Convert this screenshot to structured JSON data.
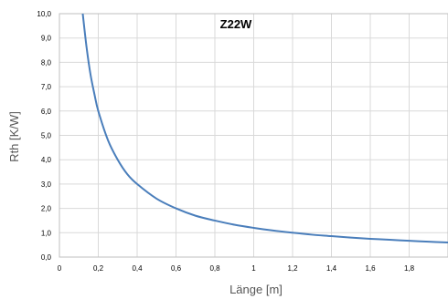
{
  "chart_data": {
    "type": "line",
    "title": "Z22W",
    "xlabel": "Länge [m]",
    "ylabel": "Rth [K/W]",
    "xlim": [
      0,
      2.0
    ],
    "ylim": [
      0,
      10
    ],
    "grid": true,
    "x_ticks": [
      0,
      0.2,
      0.4,
      0.6,
      0.8,
      1.0,
      1.2,
      1.4,
      1.6,
      1.8
    ],
    "x_tick_labels": [
      "0",
      "0,2",
      "0,4",
      "0,6",
      "0,8",
      "1",
      "1,2",
      "1,4",
      "1,6",
      "1,8"
    ],
    "y_ticks": [
      0,
      1,
      2,
      3,
      4,
      5,
      6,
      7,
      8,
      9,
      10
    ],
    "y_tick_labels": [
      "0,0",
      "1,0",
      "2,0",
      "3,0",
      "4,0",
      "5,0",
      "6,0",
      "7,0",
      "8,0",
      "9,0",
      "10,0"
    ],
    "series": [
      {
        "color": "#4a7ebb",
        "x": [
          0.12,
          0.14,
          0.16,
          0.18,
          0.2,
          0.25,
          0.3,
          0.35,
          0.4,
          0.5,
          0.6,
          0.7,
          0.8,
          0.9,
          1.0,
          1.1,
          1.2,
          1.3,
          1.4,
          1.5,
          1.6,
          1.7,
          1.8,
          1.9,
          2.0
        ],
        "y": [
          10.0,
          8.6,
          7.5,
          6.7,
          6.0,
          4.8,
          4.0,
          3.4,
          3.0,
          2.4,
          2.0,
          1.7,
          1.5,
          1.33,
          1.2,
          1.09,
          1.0,
          0.92,
          0.86,
          0.8,
          0.75,
          0.71,
          0.67,
          0.63,
          0.6
        ]
      }
    ]
  }
}
